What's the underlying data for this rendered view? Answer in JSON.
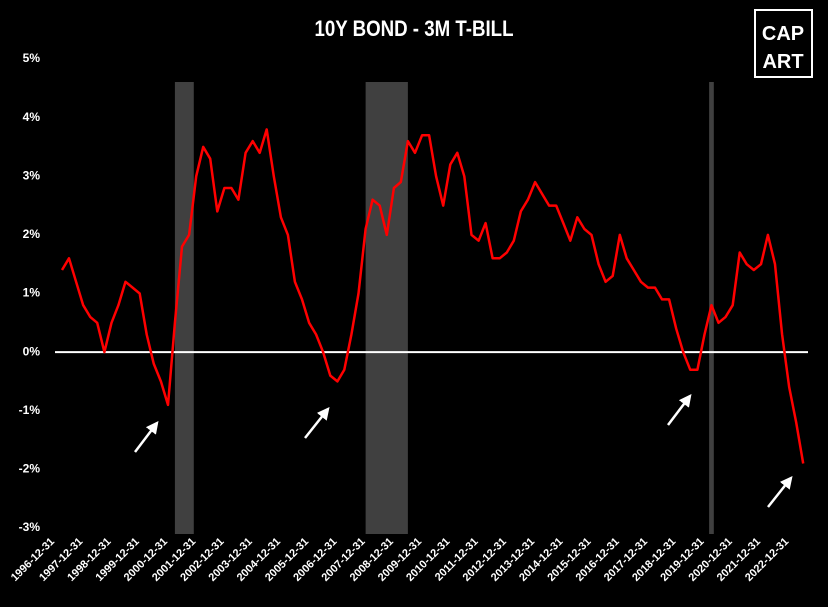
{
  "chart_data": {
    "type": "line",
    "title": "10Y BOND - 3M T-BILL",
    "logo": [
      "CAP",
      "ART"
    ],
    "x": [
      "1997-03-31",
      "1997-06-30",
      "1997-09-30",
      "1997-12-31",
      "1998-03-31",
      "1998-06-30",
      "1998-09-30",
      "1998-12-31",
      "1999-03-31",
      "1999-06-30",
      "1999-09-30",
      "1999-12-31",
      "2000-03-31",
      "2000-06-30",
      "2000-09-30",
      "2000-12-31",
      "2001-03-31",
      "2001-06-30",
      "2001-09-30",
      "2001-12-31",
      "2002-03-31",
      "2002-06-30",
      "2002-09-30",
      "2002-12-31",
      "2003-03-31",
      "2003-06-30",
      "2003-09-30",
      "2003-12-31",
      "2004-03-31",
      "2004-06-30",
      "2004-09-30",
      "2004-12-31",
      "2005-03-31",
      "2005-06-30",
      "2005-09-30",
      "2005-12-31",
      "2006-03-31",
      "2006-06-30",
      "2006-09-30",
      "2006-12-31",
      "2007-03-31",
      "2007-06-30",
      "2007-09-30",
      "2007-12-31",
      "2008-03-31",
      "2008-06-30",
      "2008-09-30",
      "2008-12-31",
      "2009-03-31",
      "2009-06-30",
      "2009-09-30",
      "2009-12-31",
      "2010-03-31",
      "2010-06-30",
      "2010-09-30",
      "2010-12-31",
      "2011-03-31",
      "2011-06-30",
      "2011-09-30",
      "2011-12-31",
      "2012-03-31",
      "2012-06-30",
      "2012-09-30",
      "2012-12-31",
      "2013-03-31",
      "2013-06-30",
      "2013-09-30",
      "2013-12-31",
      "2014-03-31",
      "2014-06-30",
      "2014-09-30",
      "2014-12-31",
      "2015-03-31",
      "2015-06-30",
      "2015-09-30",
      "2015-12-31",
      "2016-03-31",
      "2016-06-30",
      "2016-09-30",
      "2016-12-31",
      "2017-03-31",
      "2017-06-30",
      "2017-09-30",
      "2017-12-31",
      "2018-03-31",
      "2018-06-30",
      "2018-09-30",
      "2018-12-31",
      "2019-03-31",
      "2019-06-30",
      "2019-09-30",
      "2019-12-31",
      "2020-03-31",
      "2020-06-30",
      "2020-09-30",
      "2020-12-31",
      "2021-03-31",
      "2021-06-30",
      "2021-09-30",
      "2021-12-31",
      "2022-03-31",
      "2022-06-30",
      "2022-09-30",
      "2022-12-31",
      "2023-03-31",
      "2023-06-30"
    ],
    "series": [
      {
        "name": "10Y BOND - 3M T-BILL",
        "color": "#ff0000",
        "values": [
          1.4,
          1.6,
          1.2,
          0.8,
          0.6,
          0.5,
          0.0,
          0.5,
          0.8,
          1.2,
          1.1,
          1.0,
          0.3,
          -0.2,
          -0.5,
          -0.9,
          0.5,
          1.8,
          2.0,
          3.0,
          3.5,
          3.3,
          2.4,
          2.8,
          2.8,
          2.6,
          3.4,
          3.6,
          3.4,
          3.8,
          3.0,
          2.3,
          2.0,
          1.2,
          0.9,
          0.5,
          0.3,
          0.0,
          -0.4,
          -0.5,
          -0.3,
          0.3,
          1.0,
          2.1,
          2.6,
          2.5,
          2.0,
          2.8,
          2.9,
          3.6,
          3.4,
          3.7,
          3.7,
          3.0,
          2.5,
          3.2,
          3.4,
          3.0,
          2.0,
          1.9,
          2.2,
          1.6,
          1.6,
          1.7,
          1.9,
          2.4,
          2.6,
          2.9,
          2.7,
          2.5,
          2.5,
          2.2,
          1.9,
          2.3,
          2.1,
          2.0,
          1.5,
          1.2,
          1.3,
          2.0,
          1.6,
          1.4,
          1.2,
          1.1,
          1.1,
          0.9,
          0.9,
          0.4,
          0.0,
          -0.3,
          -0.3,
          0.3,
          0.8,
          0.5,
          0.6,
          0.8,
          1.7,
          1.5,
          1.4,
          1.5,
          2.0,
          1.5,
          0.3,
          -0.6,
          -1.2,
          -1.9
        ]
      }
    ],
    "recessions": [
      [
        "2001-03-31",
        "2001-11-30"
      ],
      [
        "2007-12-31",
        "2009-06-30"
      ],
      [
        "2020-02-29",
        "2020-04-30"
      ]
    ],
    "recession_color": "#404040",
    "xlim": [
      "1996-12-31",
      "2023-08-31"
    ],
    "xticks": [
      "1996-12-31",
      "1997-12-31",
      "1998-12-31",
      "1999-12-31",
      "2000-12-31",
      "2001-12-31",
      "2002-12-31",
      "2003-12-31",
      "2004-12-31",
      "2005-12-31",
      "2006-12-31",
      "2007-12-31",
      "2008-12-31",
      "2009-12-31",
      "2010-12-31",
      "2011-12-31",
      "2012-12-31",
      "2013-12-31",
      "2014-12-31",
      "2015-12-31",
      "2016-12-31",
      "2017-12-31",
      "2018-12-31",
      "2019-12-31",
      "2020-12-31",
      "2021-12-31",
      "2022-12-31"
    ],
    "ylim": [
      -3,
      5
    ],
    "yticks": [
      {
        "value": -3,
        "label": "-3%"
      },
      {
        "value": -2,
        "label": "-2%"
      },
      {
        "value": -1,
        "label": "-1%"
      },
      {
        "value": 0,
        "label": "0%"
      },
      {
        "value": 1,
        "label": "1%"
      },
      {
        "value": 2,
        "label": "2%"
      },
      {
        "value": 3,
        "label": "3%"
      },
      {
        "value": 4,
        "label": "4%"
      },
      {
        "value": 5,
        "label": "5%"
      }
    ],
    "zero_line": 0
  }
}
